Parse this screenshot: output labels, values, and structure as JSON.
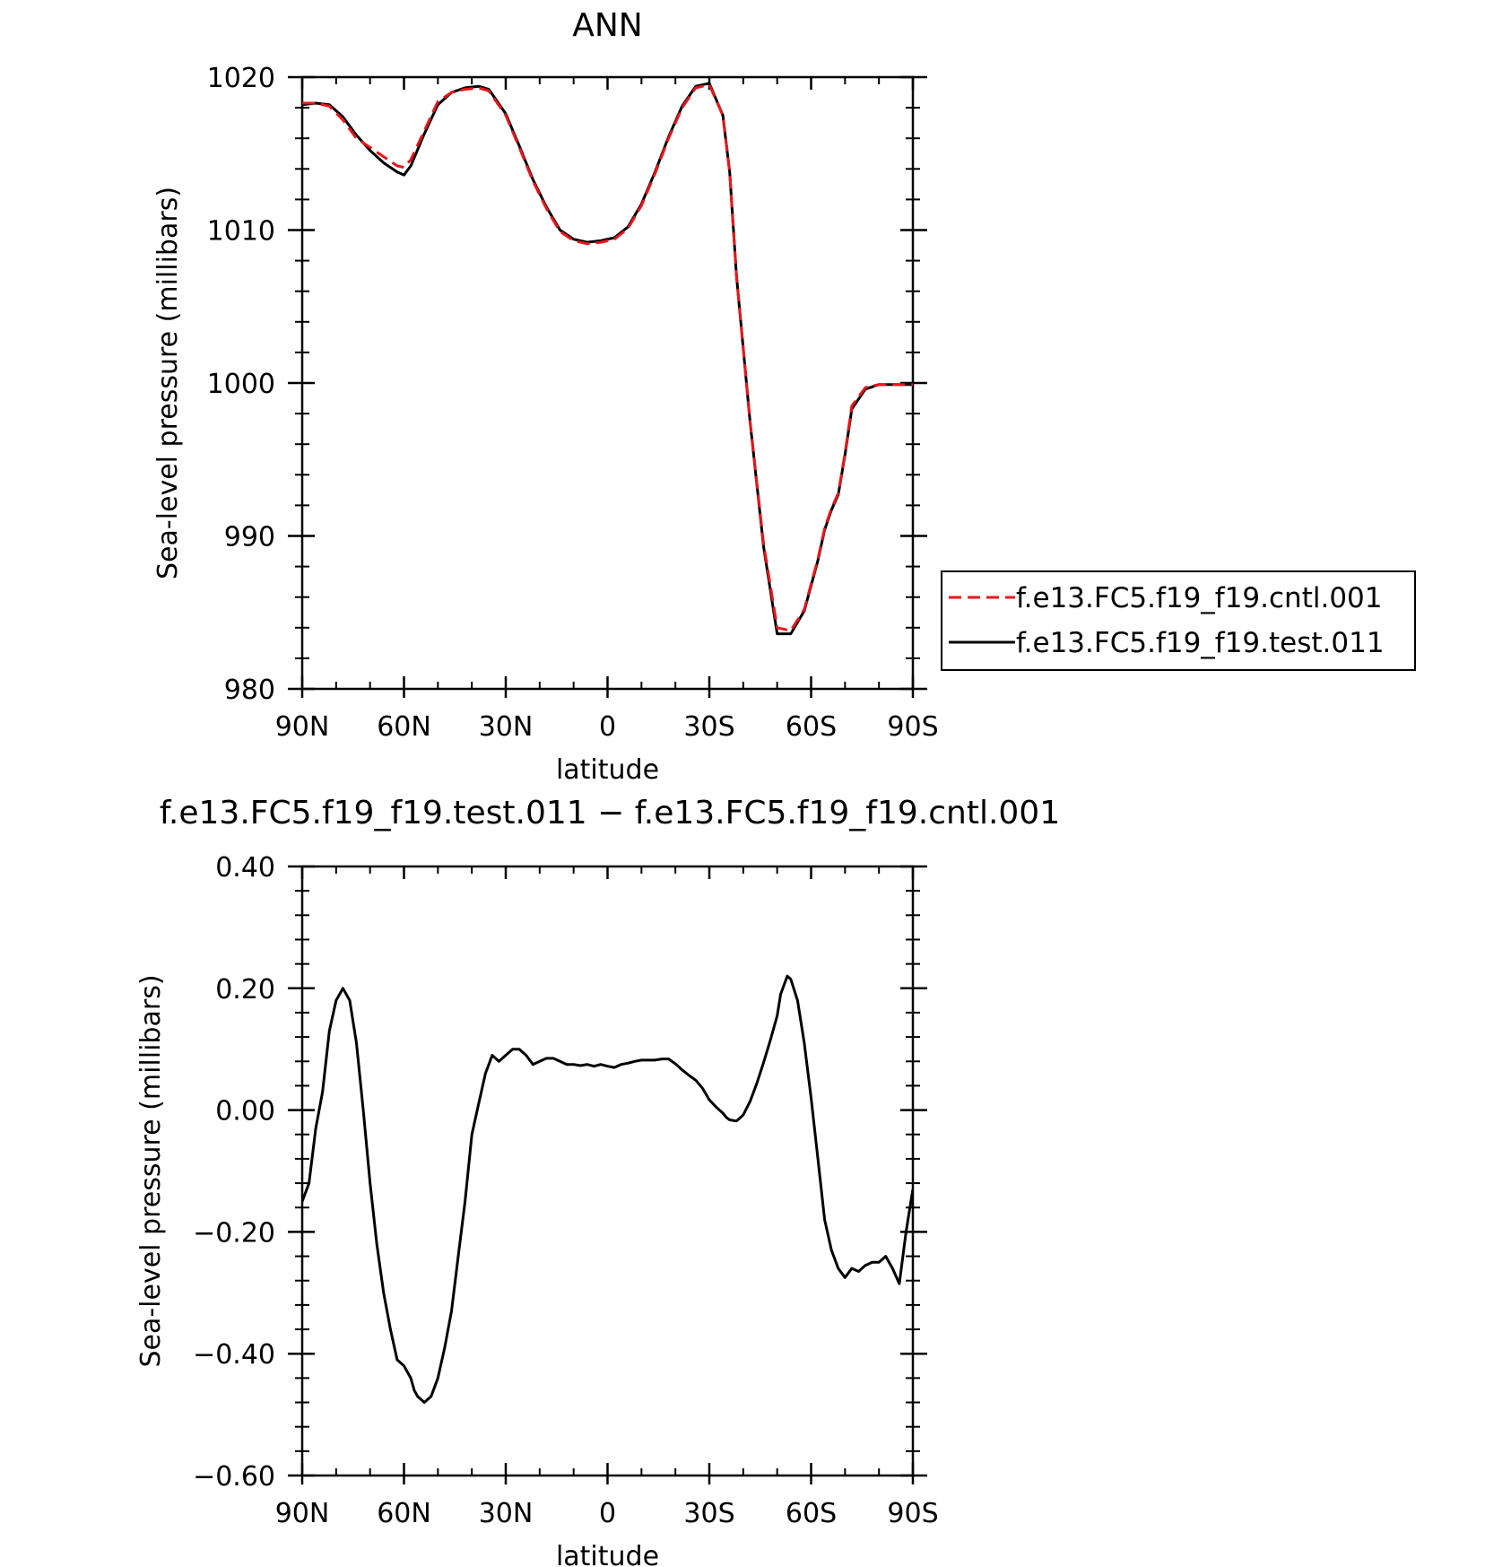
{
  "chart_data": [
    {
      "type": "line",
      "title": "ANN",
      "xlabel": "latitude",
      "ylabel": "Sea-level pressure (millibars)",
      "xlim": [
        90,
        -90
      ],
      "ylim": [
        980,
        1020
      ],
      "x_ticks": [
        {
          "value": 90,
          "label": "90N"
        },
        {
          "value": 60,
          "label": "60N"
        },
        {
          "value": 30,
          "label": "30N"
        },
        {
          "value": 0,
          "label": "0"
        },
        {
          "value": -30,
          "label": "30S"
        },
        {
          "value": -60,
          "label": "60S"
        },
        {
          "value": -90,
          "label": "90S"
        }
      ],
      "y_ticks": [
        {
          "value": 1020,
          "label": "1020"
        },
        {
          "value": 1010,
          "label": "1010"
        },
        {
          "value": 1000,
          "label": "1000"
        },
        {
          "value": 990,
          "label": "990"
        },
        {
          "value": 980,
          "label": "980"
        }
      ],
      "legend_position": "right",
      "series": [
        {
          "name": "f.e13.FC5.f19_f19.cntl.001",
          "color": "#e8161b",
          "dash": "dashed",
          "x": [
            90,
            86,
            82,
            78,
            74,
            70,
            66,
            62,
            60,
            58,
            54,
            50,
            46,
            42,
            38,
            35,
            30,
            26,
            22,
            18,
            14,
            10,
            6,
            2,
            -2,
            -6,
            -10,
            -14,
            -18,
            -22,
            -26,
            -30,
            -34,
            -36,
            -38,
            -42,
            -46,
            -50,
            -54,
            -58,
            -62,
            -64,
            -66,
            -68,
            -70,
            -72,
            -76,
            -80,
            -84,
            -86,
            -88,
            -90
          ],
          "y": [
            1018.3,
            1018.3,
            1018.1,
            1017.2,
            1016.0,
            1015.4,
            1014.8,
            1014.2,
            1014.1,
            1014.6,
            1016.5,
            1018.4,
            1019.0,
            1019.2,
            1019.3,
            1019.1,
            1017.5,
            1015.4,
            1013.2,
            1011.4,
            1009.9,
            1009.3,
            1009.1,
            1009.2,
            1009.4,
            1010.1,
            1011.6,
            1013.7,
            1016.0,
            1018.0,
            1019.3,
            1019.5,
            1017.5,
            1013.8,
            1007.0,
            997.5,
            989.5,
            984.0,
            983.8,
            985.2,
            988.5,
            990.5,
            991.8,
            992.8,
            995.4,
            998.5,
            999.7,
            999.9,
            999.9,
            999.9,
            999.9,
            999.9
          ]
        },
        {
          "name": "f.e13.FC5.f19_f19.test.011",
          "color": "#000000",
          "dash": "solid",
          "x": [
            90,
            86,
            82,
            78,
            74,
            70,
            66,
            62,
            60,
            58,
            54,
            50,
            46,
            42,
            38,
            35,
            30,
            26,
            22,
            18,
            14,
            10,
            6,
            2,
            -2,
            -6,
            -10,
            -14,
            -18,
            -22,
            -26,
            -30,
            -34,
            -36,
            -38,
            -42,
            -46,
            -50,
            -54,
            -58,
            -62,
            -64,
            -66,
            -68,
            -70,
            -72,
            -76,
            -80,
            -84,
            -86,
            -88,
            -90
          ],
          "y": [
            1018.2,
            1018.3,
            1018.2,
            1017.4,
            1016.2,
            1015.2,
            1014.4,
            1013.8,
            1013.6,
            1014.2,
            1016.3,
            1018.2,
            1019.0,
            1019.3,
            1019.4,
            1019.2,
            1017.6,
            1015.5,
            1013.3,
            1011.5,
            1010.0,
            1009.4,
            1009.2,
            1009.3,
            1009.5,
            1010.2,
            1011.7,
            1013.8,
            1016.1,
            1018.1,
            1019.4,
            1019.6,
            1017.5,
            1013.8,
            1007.0,
            997.5,
            989.3,
            983.6,
            983.6,
            985.1,
            988.4,
            990.4,
            991.7,
            992.7,
            995.3,
            998.3,
            999.6,
            999.9,
            999.9,
            999.9,
            999.9,
            999.9
          ]
        }
      ]
    },
    {
      "type": "line",
      "title": "f.e13.FC5.f19_f19.test.011 − f.e13.FC5.f19_f19.cntl.001",
      "xlabel": "latitude",
      "ylabel": "Sea-level pressure (millibars)",
      "xlim": [
        90,
        -90
      ],
      "ylim": [
        -0.6,
        0.4
      ],
      "x_ticks": [
        {
          "value": 90,
          "label": "90N"
        },
        {
          "value": 60,
          "label": "60N"
        },
        {
          "value": 30,
          "label": "30N"
        },
        {
          "value": 0,
          "label": "0"
        },
        {
          "value": -30,
          "label": "30S"
        },
        {
          "value": -60,
          "label": "60S"
        },
        {
          "value": -90,
          "label": "90S"
        }
      ],
      "y_ticks": [
        {
          "value": 0.4,
          "label": "0.40"
        },
        {
          "value": 0.2,
          "label": "0.20"
        },
        {
          "value": 0.0,
          "label": "0.00"
        },
        {
          "value": -0.2,
          "label": "−0.20"
        },
        {
          "value": -0.4,
          "label": "−0.40"
        },
        {
          "value": -0.6,
          "label": "−0.60"
        }
      ],
      "series": [
        {
          "color": "#000000",
          "dash": "solid",
          "x": [
            90,
            88,
            86,
            84,
            82,
            80,
            78,
            76,
            74,
            72,
            70,
            68,
            66,
            64,
            62,
            60,
            58,
            57,
            56,
            54,
            52,
            50,
            48,
            46,
            44,
            42,
            40,
            38,
            36,
            34,
            32,
            30,
            28,
            26,
            24,
            22,
            20,
            18,
            16,
            14,
            12,
            10,
            8,
            6,
            4,
            2,
            0,
            -2,
            -4,
            -6,
            -8,
            -10,
            -12,
            -14,
            -16,
            -18,
            -20,
            -22,
            -24,
            -26,
            -28,
            -30,
            -32,
            -34,
            -35,
            -36,
            -38,
            -40,
            -42,
            -44,
            -46,
            -48,
            -50,
            -51,
            -52,
            -53,
            -54,
            -56,
            -58,
            -60,
            -62,
            -64,
            -66,
            -68,
            -70,
            -72,
            -74,
            -76,
            -78,
            -80,
            -82,
            -84,
            -86,
            -88,
            -90
          ],
          "y": [
            -0.15,
            -0.12,
            -0.03,
            0.03,
            0.13,
            0.18,
            0.2,
            0.18,
            0.11,
            0.0,
            -0.12,
            -0.22,
            -0.3,
            -0.36,
            -0.41,
            -0.42,
            -0.44,
            -0.46,
            -0.47,
            -0.48,
            -0.47,
            -0.44,
            -0.39,
            -0.33,
            -0.24,
            -0.15,
            -0.04,
            0.01,
            0.06,
            0.09,
            0.08,
            0.09,
            0.1,
            0.1,
            0.09,
            0.075,
            0.08,
            0.085,
            0.085,
            0.08,
            0.075,
            0.075,
            0.073,
            0.075,
            0.072,
            0.075,
            0.072,
            0.07,
            0.075,
            0.077,
            0.08,
            0.082,
            0.082,
            0.082,
            0.084,
            0.084,
            0.076,
            0.066,
            0.057,
            0.049,
            0.036,
            0.017,
            0.005,
            -0.005,
            -0.012,
            -0.016,
            -0.018,
            -0.008,
            0.014,
            0.044,
            0.078,
            0.115,
            0.155,
            0.19,
            0.205,
            0.22,
            0.215,
            0.18,
            0.11,
            0.02,
            -0.08,
            -0.18,
            -0.23,
            -0.26,
            -0.275,
            -0.26,
            -0.265,
            -0.255,
            -0.25,
            -0.25,
            -0.24,
            -0.26,
            -0.285,
            -0.2,
            -0.13
          ]
        }
      ]
    }
  ]
}
